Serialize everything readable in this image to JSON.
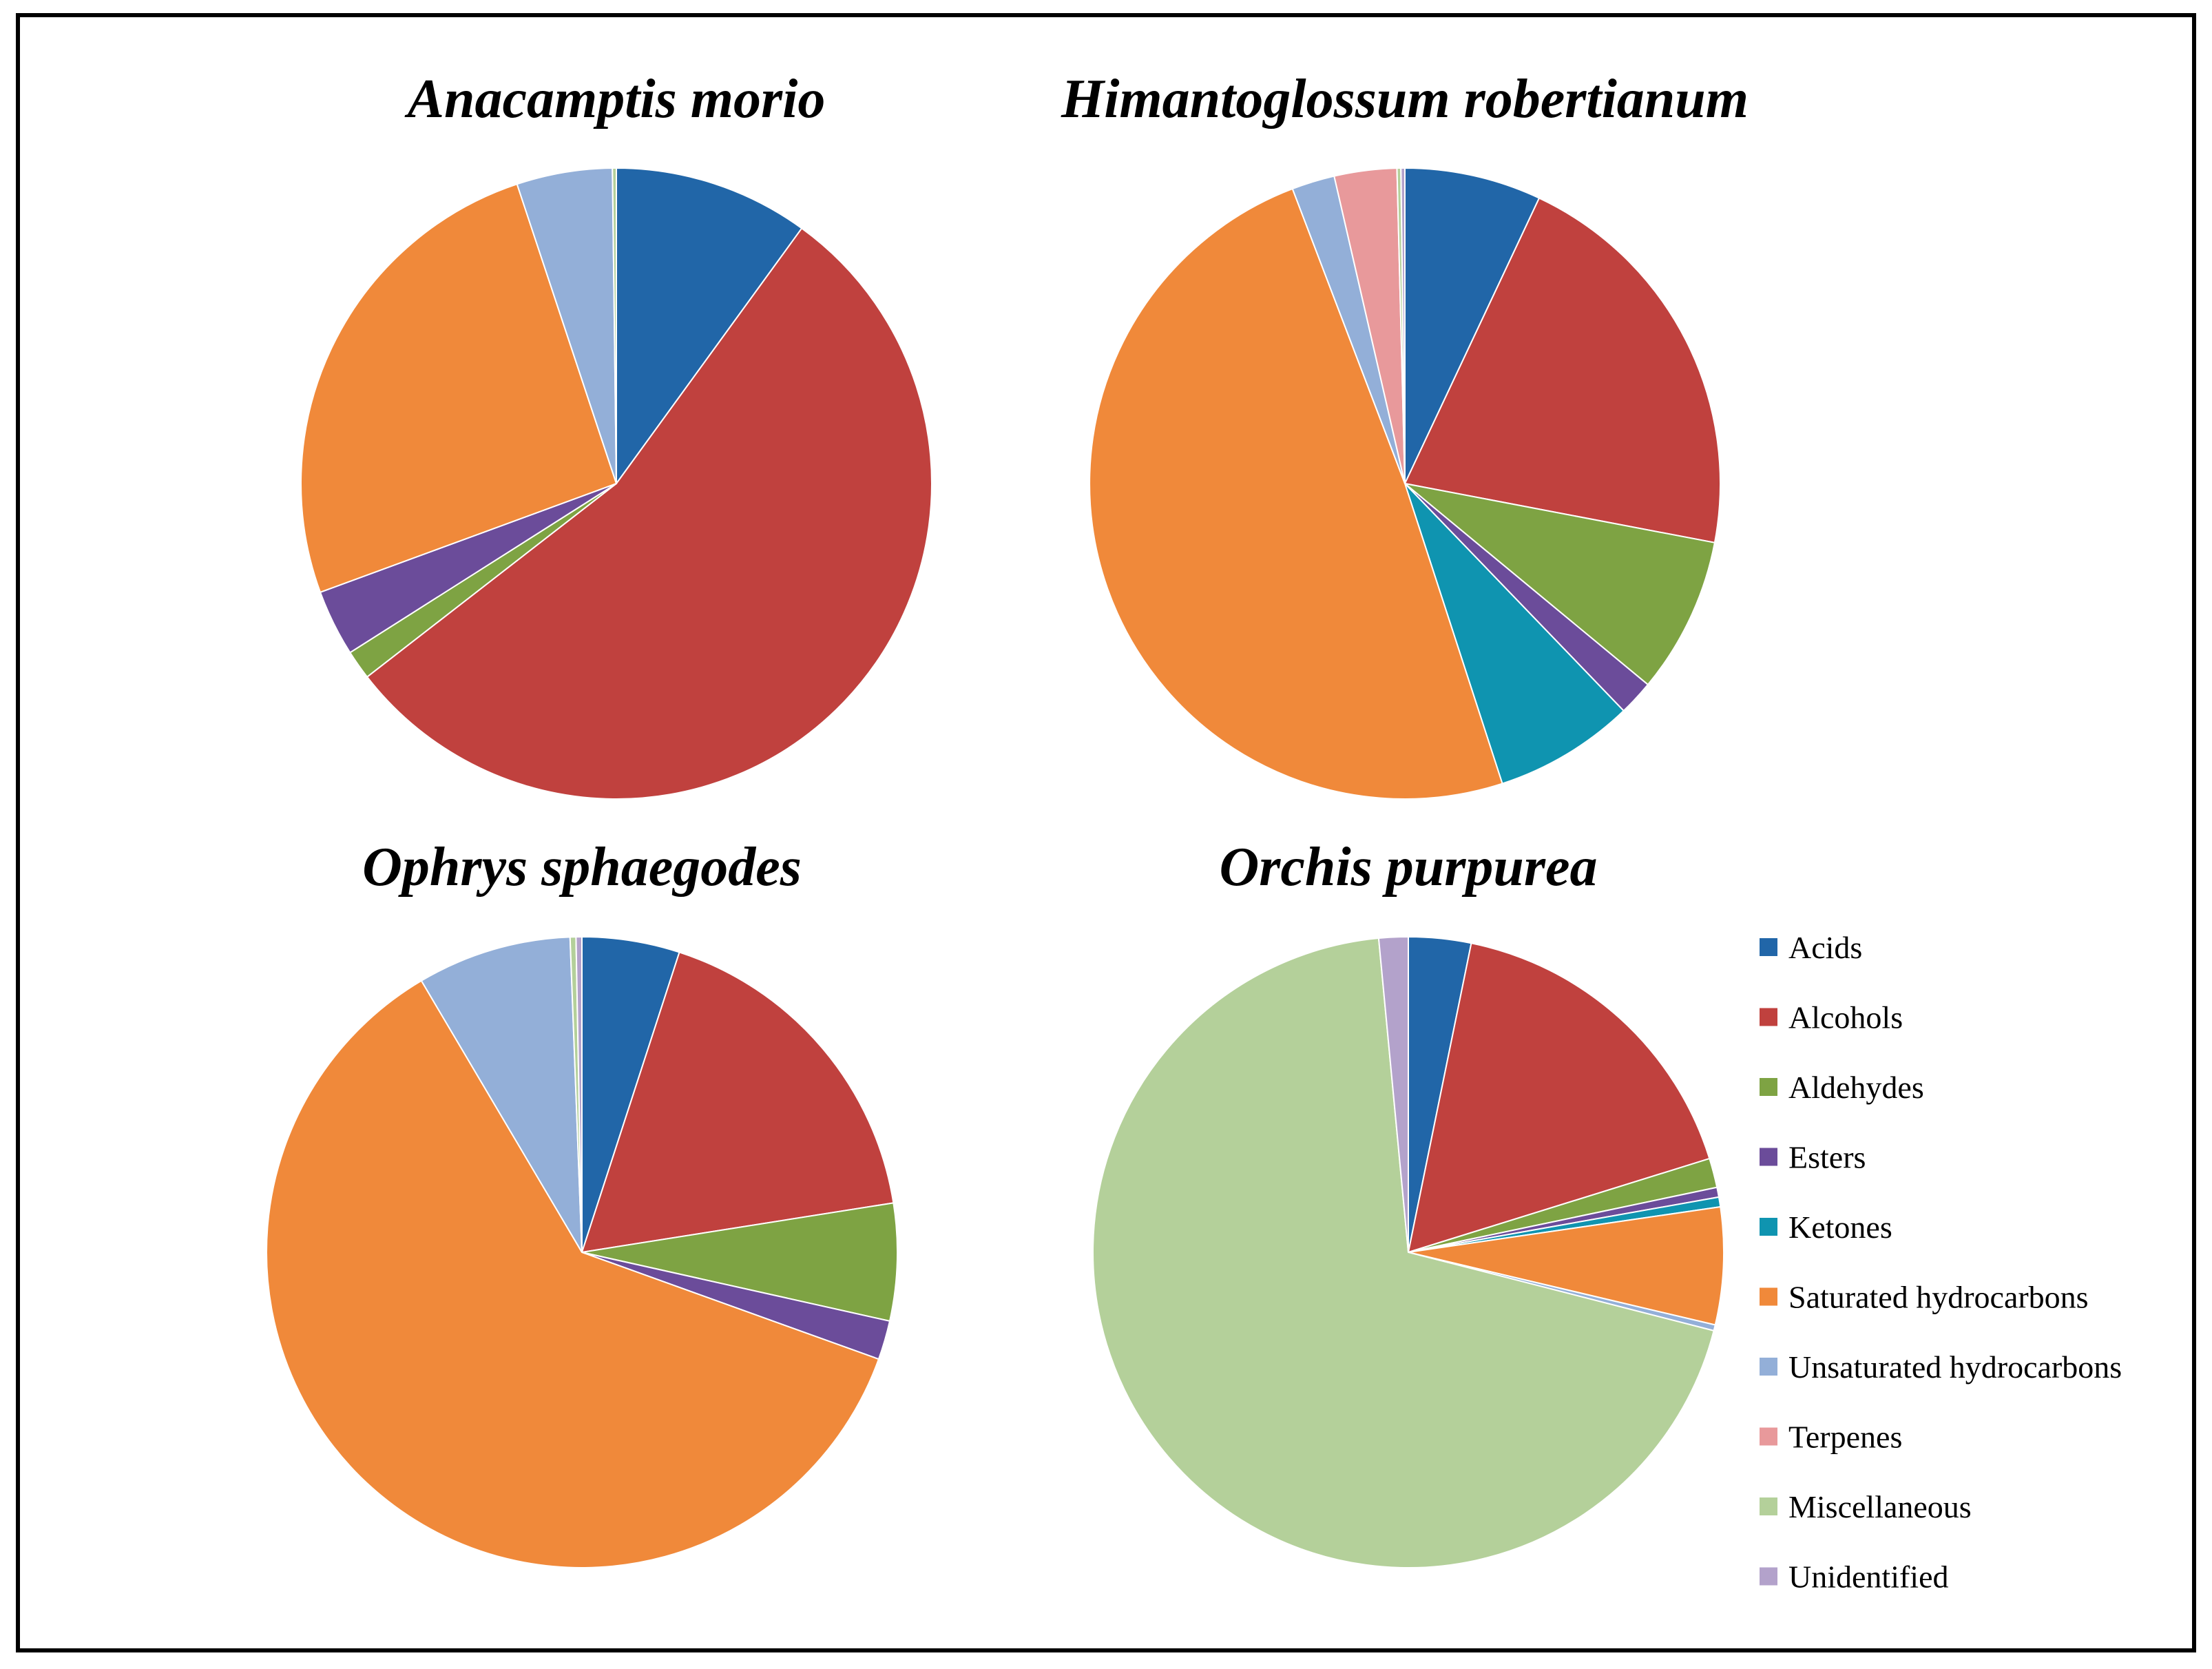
{
  "categories": [
    "Acids",
    "Alcohols",
    "Aldehydes",
    "Esters",
    "Ketones",
    "Saturated hydrocarbons",
    "Unsaturated hydrocarbons",
    "Terpenes",
    "Miscellaneous",
    "Unidentified"
  ],
  "colors": {
    "Acids": "#2166A8",
    "Alcohols": "#C0413E",
    "Aldehydes": "#7EA343",
    "Esters": "#6B4C9A",
    "Ketones": "#0F94B0",
    "Saturated hydrocarbons": "#F0893A",
    "Unsaturated hydrocarbons": "#93AFD8",
    "Terpenes": "#E8999B",
    "Miscellaneous": "#B4D09A",
    "Unidentified": "#B3A2CB"
  },
  "legend_position": "right",
  "chart_data": [
    {
      "type": "pie",
      "title": "Anacamptis morio",
      "categories": [
        "Acids",
        "Alcohols",
        "Aldehydes",
        "Esters",
        "Ketones",
        "Saturated hydrocarbons",
        "Unsaturated hydrocarbons",
        "Terpenes",
        "Miscellaneous",
        "Unidentified"
      ],
      "values": [
        10.0,
        54.5,
        1.5,
        3.4,
        0.0,
        25.5,
        4.9,
        0.0,
        0.2,
        0.0
      ]
    },
    {
      "type": "pie",
      "title": "Himantoglossum robertianum",
      "categories": [
        "Acids",
        "Alcohols",
        "Aldehydes",
        "Esters",
        "Ketones",
        "Saturated hydrocarbons",
        "Unsaturated hydrocarbons",
        "Terpenes",
        "Miscellaneous",
        "Unidentified"
      ],
      "values": [
        7.0,
        21.0,
        8.0,
        1.8,
        7.2,
        49.2,
        2.2,
        3.2,
        0.2,
        0.2
      ]
    },
    {
      "type": "pie",
      "title": "Ophrys sphaegodes",
      "categories": [
        "Acids",
        "Alcohols",
        "Aldehydes",
        "Esters",
        "Ketones",
        "Saturated hydrocarbons",
        "Unsaturated hydrocarbons",
        "Terpenes",
        "Miscellaneous",
        "Unidentified"
      ],
      "values": [
        5.0,
        17.5,
        6.0,
        2.0,
        0.0,
        61.0,
        7.9,
        0.0,
        0.3,
        0.3
      ]
    },
    {
      "type": "pie",
      "title": "Orchis purpurea",
      "categories": [
        "Acids",
        "Alcohols",
        "Aldehydes",
        "Esters",
        "Ketones",
        "Saturated hydrocarbons",
        "Unsaturated hydrocarbons",
        "Terpenes",
        "Miscellaneous",
        "Unidentified"
      ],
      "values": [
        3.2,
        17.0,
        1.5,
        0.5,
        0.5,
        6.0,
        0.3,
        0.0,
        69.5,
        1.5
      ]
    }
  ]
}
